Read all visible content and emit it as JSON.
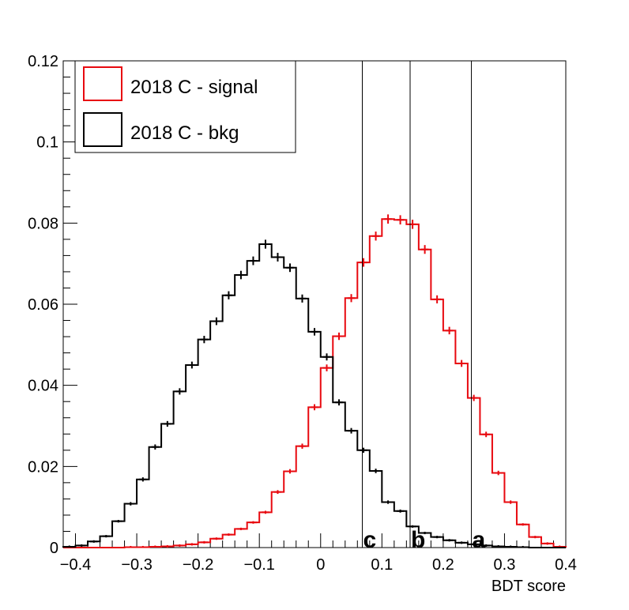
{
  "chart_data": {
    "type": "line",
    "title": "",
    "xlabel": "BDT score",
    "ylabel": "",
    "xlim": [
      -0.42,
      0.4
    ],
    "ylim": [
      0,
      0.12
    ],
    "x_ticks": [
      -0.4,
      -0.3,
      -0.2,
      -0.1,
      0,
      0.1,
      0.2,
      0.3,
      0.4
    ],
    "x_tick_labels": [
      "−0.4",
      "−0.3",
      "−0.2",
      "−0.1",
      "0",
      "0.1",
      "0.2",
      "0.3",
      "0.4"
    ],
    "y_ticks": [
      0,
      0.02,
      0.04,
      0.06,
      0.08,
      0.1,
      0.12
    ],
    "y_tick_labels": [
      "0",
      "0.02",
      "0.04",
      "0.06",
      "0.08",
      "0.1",
      "0.12"
    ],
    "grid": false,
    "legend_position": "top-left",
    "bin_width": 0.02,
    "bin_edges_start": -0.42,
    "series": [
      {
        "name": "2018 C - signal",
        "color": "#e8090f",
        "style": "step-with-error-bars",
        "values": [
          0.0,
          0.0,
          0.0,
          0.0,
          0.0,
          0.0001,
          0.0001,
          0.0002,
          0.0003,
          0.0005,
          0.0008,
          0.0013,
          0.0022,
          0.0032,
          0.0046,
          0.0062,
          0.0087,
          0.0137,
          0.0188,
          0.025,
          0.0346,
          0.0443,
          0.0521,
          0.0615,
          0.0703,
          0.0768,
          0.081,
          0.0808,
          0.0797,
          0.0735,
          0.0612,
          0.0535,
          0.0454,
          0.0369,
          0.0279,
          0.0184,
          0.0112,
          0.0057,
          0.0026,
          0.001,
          0.0002
        ]
      },
      {
        "name": "2018 C - bkg",
        "color": "#000000",
        "style": "step-with-error-bars",
        "values": [
          0.0002,
          0.0005,
          0.0015,
          0.0028,
          0.0065,
          0.0108,
          0.0168,
          0.0248,
          0.0305,
          0.0385,
          0.045,
          0.0513,
          0.0558,
          0.0622,
          0.0672,
          0.0707,
          0.0748,
          0.0716,
          0.069,
          0.0614,
          0.0532,
          0.047,
          0.0358,
          0.0288,
          0.024,
          0.0189,
          0.0112,
          0.009,
          0.0052,
          0.0036,
          0.0026,
          0.0018,
          0.0012,
          0.0008,
          0.0005,
          0.0003,
          0.0002,
          0.0001,
          0.0,
          0.0,
          0.0
        ]
      }
    ],
    "cut_lines": [
      {
        "x": 0.068,
        "label": "c"
      },
      {
        "x": 0.146,
        "label": "b"
      },
      {
        "x": 0.246,
        "label": "a"
      }
    ]
  }
}
